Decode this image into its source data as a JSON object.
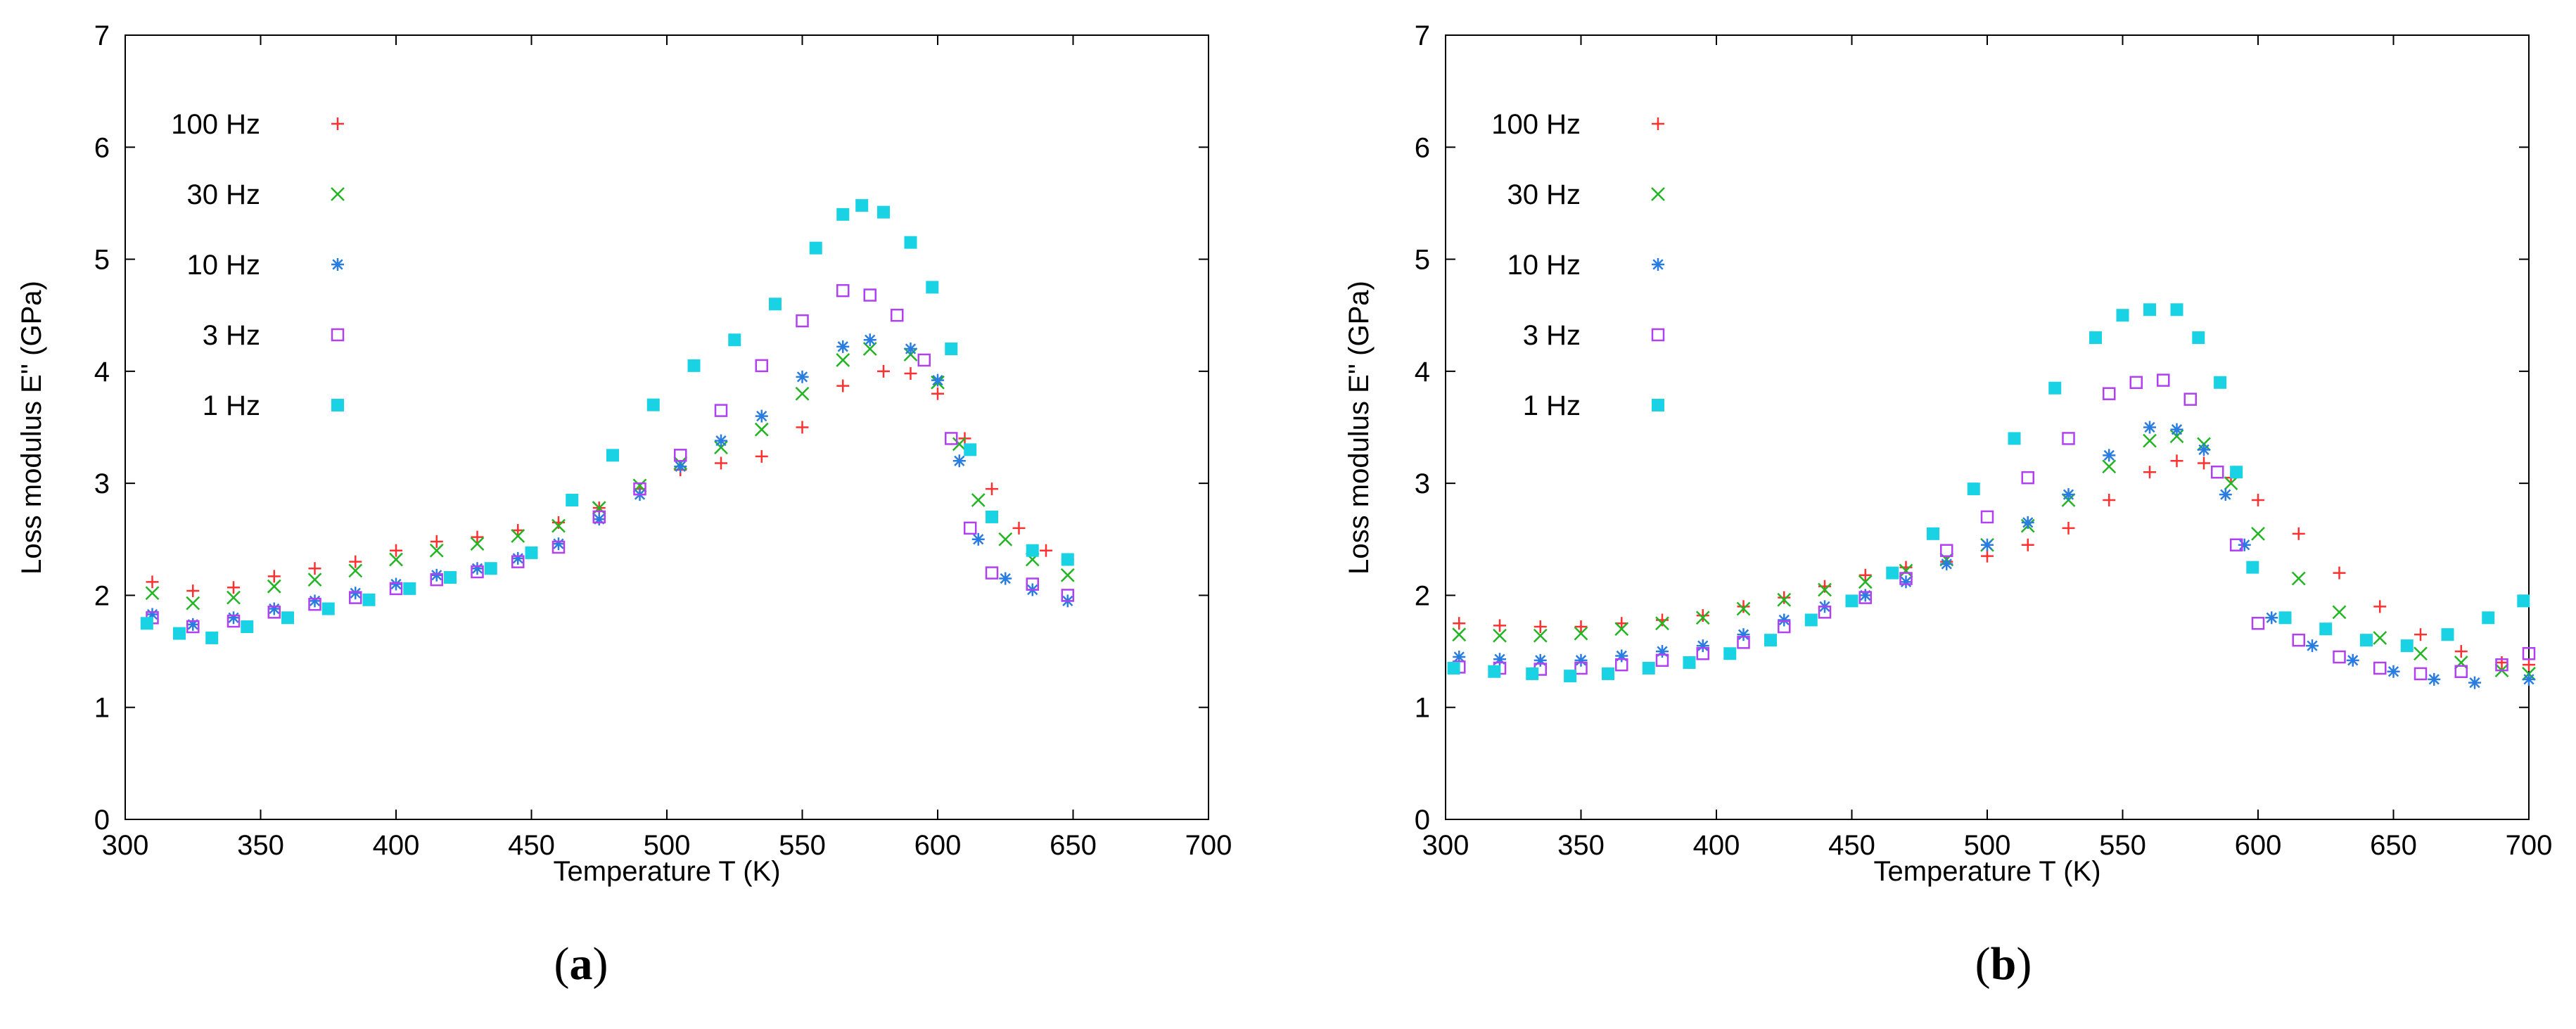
{
  "chart_data": [
    {
      "type": "scatter",
      "panel_label": "(a)",
      "panel_letter": "a",
      "xlabel": "Temperature  T  (K)",
      "ylabel": "Loss modulus  E''  (GPa)",
      "xlim": [
        300,
        700
      ],
      "ylim": [
        0,
        7
      ],
      "xticks": [
        300,
        350,
        400,
        450,
        500,
        550,
        600,
        650,
        700
      ],
      "yticks": [
        0,
        1,
        2,
        3,
        4,
        5,
        6,
        7
      ],
      "legend_position": "top-left",
      "series": [
        {
          "name": "100 Hz",
          "marker": "plus",
          "color": "#ff3030",
          "x": [
            310,
            325,
            340,
            355,
            370,
            385,
            400,
            415,
            430,
            445,
            460,
            475,
            490,
            505,
            520,
            535,
            550,
            565,
            580,
            590,
            600,
            610,
            620,
            630,
            640,
            648
          ],
          "y": [
            2.12,
            2.04,
            2.07,
            2.17,
            2.24,
            2.3,
            2.4,
            2.48,
            2.52,
            2.58,
            2.65,
            2.78,
            2.95,
            3.12,
            3.18,
            3.24,
            3.5,
            3.87,
            4.0,
            3.98,
            3.8,
            3.4,
            2.95,
            2.6,
            2.4,
            2.32
          ]
        },
        {
          "name": "30 Hz",
          "marker": "cross",
          "color": "#22b522",
          "x": [
            310,
            325,
            340,
            355,
            370,
            385,
            400,
            415,
            430,
            445,
            460,
            475,
            490,
            505,
            520,
            535,
            550,
            565,
            575,
            590,
            600,
            608,
            615,
            625,
            635,
            648
          ],
          "y": [
            2.02,
            1.93,
            1.98,
            2.08,
            2.14,
            2.22,
            2.32,
            2.4,
            2.46,
            2.53,
            2.62,
            2.78,
            2.98,
            3.18,
            3.32,
            3.48,
            3.8,
            4.1,
            4.2,
            4.15,
            3.9,
            3.35,
            2.85,
            2.5,
            2.32,
            2.18
          ]
        },
        {
          "name": "10 Hz",
          "marker": "star",
          "color": "#2a7de0",
          "x": [
            310,
            325,
            340,
            355,
            370,
            385,
            400,
            415,
            430,
            445,
            460,
            475,
            490,
            505,
            520,
            535,
            550,
            565,
            575,
            590,
            600,
            608,
            615,
            625,
            635,
            648
          ],
          "y": [
            1.83,
            1.74,
            1.8,
            1.88,
            1.95,
            2.02,
            2.1,
            2.18,
            2.24,
            2.33,
            2.46,
            2.68,
            2.9,
            3.15,
            3.38,
            3.6,
            3.95,
            4.22,
            4.28,
            4.2,
            3.92,
            3.2,
            2.5,
            2.15,
            2.05,
            1.95
          ]
        },
        {
          "name": "3 Hz",
          "marker": "square-open",
          "color": "#b040f0",
          "x": [
            310,
            325,
            340,
            355,
            370,
            385,
            400,
            415,
            430,
            445,
            460,
            475,
            490,
            505,
            520,
            535,
            550,
            565,
            575,
            585,
            595,
            605,
            612,
            620,
            635,
            648
          ],
          "y": [
            1.8,
            1.72,
            1.77,
            1.85,
            1.92,
            1.98,
            2.06,
            2.14,
            2.21,
            2.3,
            2.43,
            2.7,
            2.95,
            3.25,
            3.65,
            4.05,
            4.45,
            4.72,
            4.68,
            4.5,
            4.1,
            3.4,
            2.6,
            2.2,
            2.1,
            2.0
          ]
        },
        {
          "name": "1 Hz",
          "marker": "square-filled",
          "color": "#19d3e5",
          "x": [
            308,
            320,
            332,
            345,
            360,
            375,
            390,
            405,
            420,
            435,
            450,
            465,
            480,
            495,
            510,
            525,
            540,
            555,
            565,
            572,
            580,
            590,
            598,
            605,
            612,
            620,
            635,
            648
          ],
          "y": [
            1.75,
            1.66,
            1.62,
            1.72,
            1.8,
            1.88,
            1.96,
            2.06,
            2.16,
            2.24,
            2.38,
            2.85,
            3.25,
            3.7,
            4.05,
            4.28,
            4.6,
            5.1,
            5.4,
            5.48,
            5.42,
            5.15,
            4.75,
            4.2,
            3.3,
            2.7,
            2.4,
            2.32
          ]
        }
      ]
    },
    {
      "type": "scatter",
      "panel_label": "(b)",
      "panel_letter": "b",
      "xlabel": "Temperature  T  (K)",
      "ylabel": "Loss modulus  E''  (GPa)",
      "xlim": [
        300,
        700
      ],
      "ylim": [
        0,
        7
      ],
      "xticks": [
        300,
        350,
        400,
        450,
        500,
        550,
        600,
        650,
        700
      ],
      "yticks": [
        0,
        1,
        2,
        3,
        4,
        5,
        6,
        7
      ],
      "legend_position": "top-left",
      "series": [
        {
          "name": "100 Hz",
          "marker": "plus",
          "color": "#ff3030",
          "x": [
            305,
            320,
            335,
            350,
            365,
            380,
            395,
            410,
            425,
            440,
            455,
            470,
            485,
            500,
            515,
            530,
            545,
            560,
            570,
            580,
            590,
            600,
            615,
            630,
            645,
            660,
            675,
            690,
            700
          ],
          "y": [
            1.75,
            1.73,
            1.72,
            1.72,
            1.75,
            1.78,
            1.82,
            1.9,
            1.98,
            2.08,
            2.18,
            2.25,
            2.3,
            2.35,
            2.45,
            2.6,
            2.85,
            3.1,
            3.2,
            3.18,
            3.05,
            2.85,
            2.55,
            2.2,
            1.9,
            1.65,
            1.5,
            1.4,
            1.38
          ]
        },
        {
          "name": "30 Hz",
          "marker": "cross",
          "color": "#22b522",
          "x": [
            305,
            320,
            335,
            350,
            365,
            380,
            395,
            410,
            425,
            440,
            455,
            470,
            485,
            500,
            515,
            530,
            545,
            560,
            570,
            580,
            590,
            600,
            615,
            630,
            645,
            660,
            675,
            690,
            700
          ],
          "y": [
            1.65,
            1.64,
            1.64,
            1.66,
            1.7,
            1.75,
            1.8,
            1.88,
            1.96,
            2.05,
            2.12,
            2.22,
            2.32,
            2.45,
            2.62,
            2.85,
            3.15,
            3.38,
            3.42,
            3.35,
            3.0,
            2.55,
            2.15,
            1.85,
            1.62,
            1.48,
            1.4,
            1.33,
            1.3
          ]
        },
        {
          "name": "10 Hz",
          "marker": "star",
          "color": "#2a7de0",
          "x": [
            305,
            320,
            335,
            350,
            365,
            380,
            395,
            410,
            425,
            440,
            455,
            470,
            485,
            500,
            515,
            530,
            545,
            560,
            570,
            580,
            588,
            595,
            605,
            620,
            635,
            650,
            665,
            680,
            700
          ],
          "y": [
            1.45,
            1.43,
            1.42,
            1.42,
            1.46,
            1.5,
            1.55,
            1.65,
            1.78,
            1.9,
            2.0,
            2.12,
            2.28,
            2.45,
            2.65,
            2.9,
            3.25,
            3.5,
            3.48,
            3.3,
            2.9,
            2.45,
            1.8,
            1.55,
            1.42,
            1.32,
            1.25,
            1.22,
            1.25
          ]
        },
        {
          "name": "3 Hz",
          "marker": "square-open",
          "color": "#b040f0",
          "x": [
            305,
            320,
            335,
            350,
            365,
            380,
            395,
            410,
            425,
            440,
            455,
            470,
            485,
            500,
            515,
            530,
            545,
            555,
            565,
            575,
            585,
            592,
            600,
            615,
            630,
            645,
            660,
            675,
            690,
            700
          ],
          "y": [
            1.36,
            1.35,
            1.34,
            1.35,
            1.38,
            1.42,
            1.48,
            1.58,
            1.72,
            1.85,
            1.98,
            2.15,
            2.4,
            2.7,
            3.05,
            3.4,
            3.8,
            3.9,
            3.92,
            3.75,
            3.1,
            2.45,
            1.75,
            1.6,
            1.45,
            1.35,
            1.3,
            1.32,
            1.38,
            1.48
          ]
        },
        {
          "name": "1 Hz",
          "marker": "square-filled",
          "color": "#19d3e5",
          "x": [
            303,
            318,
            332,
            346,
            360,
            375,
            390,
            405,
            420,
            435,
            450,
            465,
            480,
            495,
            510,
            525,
            540,
            550,
            560,
            570,
            578,
            586,
            592,
            598,
            610,
            625,
            640,
            655,
            670,
            685,
            698
          ],
          "y": [
            1.35,
            1.32,
            1.3,
            1.28,
            1.3,
            1.35,
            1.4,
            1.48,
            1.6,
            1.78,
            1.95,
            2.2,
            2.55,
            2.95,
            3.4,
            3.85,
            4.3,
            4.5,
            4.55,
            4.55,
            4.3,
            3.9,
            3.1,
            2.25,
            1.8,
            1.7,
            1.6,
            1.55,
            1.65,
            1.8,
            1.95
          ]
        }
      ]
    }
  ]
}
